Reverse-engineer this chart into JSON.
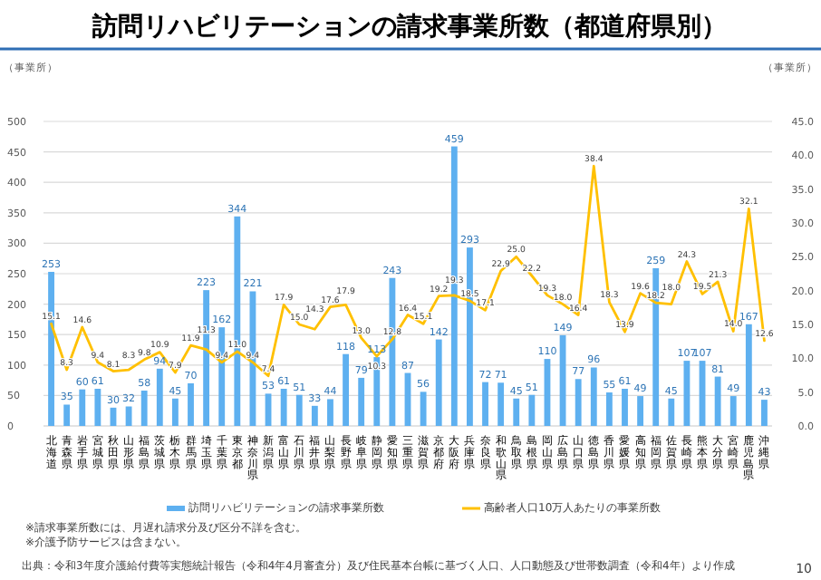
{
  "chart_data": {
    "type": "bar",
    "title": "訪問リハビリテーションの請求事業所数（都道府県別）",
    "ylabel": "（事業所）",
    "y2label": "（事業所）",
    "categories": [
      "北海道",
      "青森県",
      "岩手県",
      "宮城県",
      "秋田県",
      "山形県",
      "福島県",
      "茨城県",
      "栃木県",
      "群馬県",
      "埼玉県",
      "千葉県",
      "東京都",
      "神奈川県",
      "新潟県",
      "富山県",
      "石川県",
      "福井県",
      "山梨県",
      "長野県",
      "岐阜県",
      "静岡県",
      "愛知県",
      "三重県",
      "滋賀県",
      "京都府",
      "大阪府",
      "兵庫県",
      "奈良県",
      "和歌山県",
      "鳥取県",
      "島根県",
      "岡山県",
      "広島県",
      "山口県",
      "徳島県",
      "香川県",
      "愛媛県",
      "高知県",
      "福岡県",
      "佐賀県",
      "長崎県",
      "熊本県",
      "大分県",
      "宮崎県",
      "鹿児島県",
      "沖縄県"
    ],
    "series": [
      {
        "name": "訪問リハビリテーションの請求事業所数",
        "color": "#5eb0f0",
        "values": [
          253,
          35,
          60,
          61,
          30,
          32,
          58,
          94,
          45,
          70,
          223,
          162,
          344,
          221,
          53,
          61,
          51,
          33,
          44,
          118,
          79,
          113,
          243,
          87,
          56,
          142,
          459,
          293,
          72,
          71,
          45,
          51,
          110,
          149,
          77,
          96,
          55,
          61,
          49,
          259,
          45,
          107,
          107,
          81,
          49,
          167,
          43
        ]
      },
      {
        "name": "高齢者人口10万人あたりの事業所数",
        "color": "#ffc000",
        "type": "line",
        "axis": "y2",
        "values": [
          15.1,
          8.3,
          14.6,
          9.4,
          8.1,
          8.3,
          9.8,
          10.9,
          7.9,
          11.9,
          11.3,
          9.4,
          11.0,
          9.4,
          7.4,
          17.9,
          15.0,
          14.3,
          17.6,
          17.9,
          13.0,
          10.3,
          12.8,
          16.4,
          15.1,
          19.2,
          19.3,
          18.5,
          17.1,
          22.9,
          25.0,
          22.2,
          19.3,
          18.0,
          16.4,
          38.4,
          18.3,
          13.9,
          19.6,
          18.2,
          18.0,
          24.3,
          19.5,
          21.3,
          14.0,
          32.1,
          12.6
        ],
        "value_labels": [
          "15.1",
          "8.3",
          "14.6",
          "9.4",
          "8.1",
          "8.3",
          "9.8",
          "10.9",
          "7.9",
          "11.9",
          "11.3",
          "9.4",
          "11.0",
          "9.4",
          "7.4",
          "17.9",
          "15.0",
          "14.3",
          "17.6",
          "17.9",
          "13.0",
          "10.3",
          "12.8",
          "16.4",
          "15.1",
          "19.2",
          "19.3",
          "18.5",
          "17.1",
          "22.9",
          "25.0",
          "22.2",
          "19.3",
          "18.0",
          "16.4",
          "38.4",
          "18.3",
          "13.9",
          "19.6",
          "18.2",
          "18.0",
          "24.3",
          "19.5",
          "21.3",
          "14.0",
          "32.1",
          "12.6"
        ]
      }
    ],
    "ylim": [
      0,
      500
    ],
    "yticks": [
      0,
      50,
      100,
      150,
      200,
      250,
      300,
      350,
      400,
      450,
      500
    ],
    "y2lim": [
      0,
      45
    ],
    "y2ticks": [
      {
        "value": 0,
        "label": "0.0"
      },
      {
        "value": 5,
        "label": "5.0"
      },
      {
        "value": 10,
        "label": "10.0"
      },
      {
        "value": 15,
        "label": "15.0"
      },
      {
        "value": 20,
        "label": "20.0"
      },
      {
        "value": 25,
        "label": "25.0"
      },
      {
        "value": 30,
        "label": "30.0"
      },
      {
        "value": 35,
        "label": "35.0"
      },
      {
        "value": 40,
        "label": "40.0"
      },
      {
        "value": 45,
        "label": "45.0"
      }
    ],
    "grid": "y",
    "legend": "bottom",
    "data_labels": true,
    "annotations": [
      "※請求事業所数には、月遅れ請求分及び区分不詳を含む。",
      "※介護予防サービスは含まない。",
      "出典：令和3年度介護給付費等実態統計報告（令和4年4月審査分）及び住民基本台帳に基づく人口、人口動態及び世帯数調査（令和4年）より作成",
      "10"
    ]
  }
}
